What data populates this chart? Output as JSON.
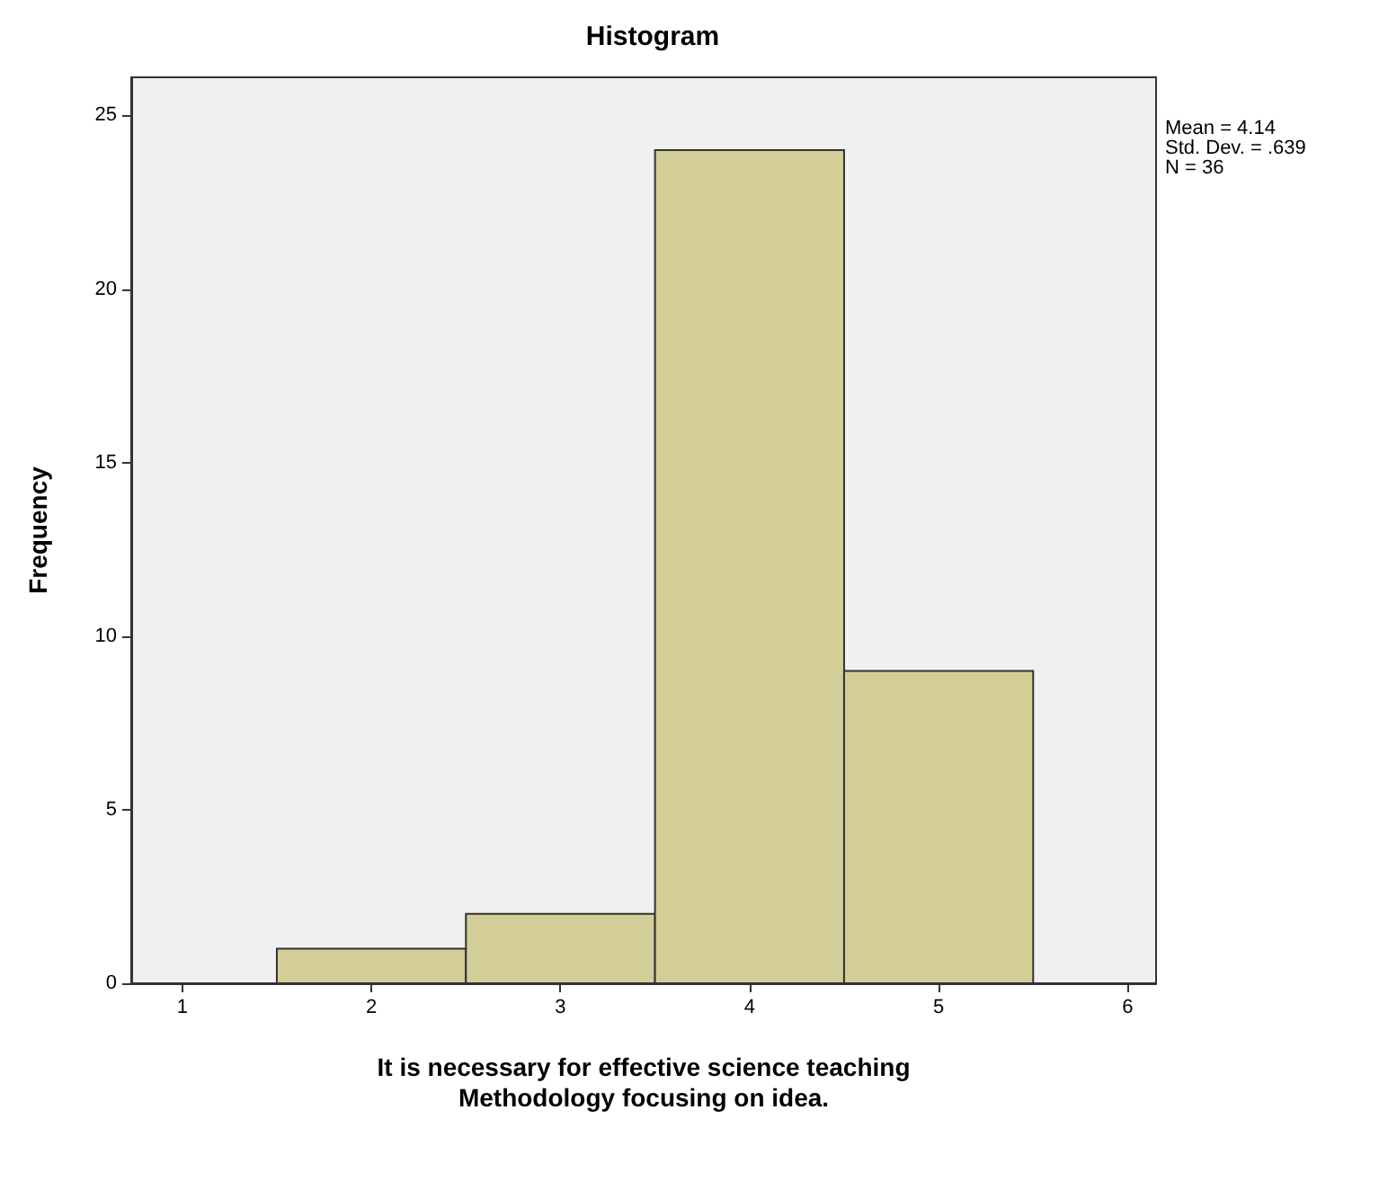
{
  "chart_data": {
    "type": "histogram",
    "title": "Histogram",
    "xlabel": "It is necessary for effective science teaching\nMethodology focusing on idea.",
    "ylabel": "Frequency",
    "bins": [
      1.5,
      2.5,
      3.5,
      4.5,
      5.5
    ],
    "values": [
      1,
      2,
      24,
      9
    ],
    "color": "#d3ce97",
    "xlim": [
      0.73,
      6.15
    ],
    "xticks": [
      1,
      2,
      3,
      4,
      5,
      6
    ],
    "ylim": [
      0,
      26.1
    ],
    "yticks": [
      0,
      5,
      10,
      15,
      20,
      25
    ],
    "grid": false,
    "annotations": [
      "Mean = 4.14",
      "Std. Dev. = .639",
      "N = 36"
    ]
  }
}
